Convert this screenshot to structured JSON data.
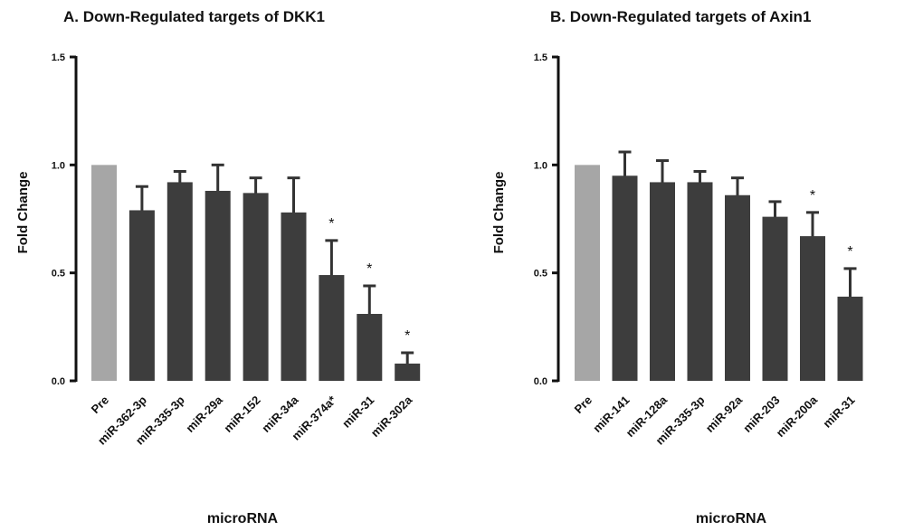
{
  "chart_data": [
    {
      "type": "bar",
      "title": "A.   Down-Regulated targets of DKK1",
      "xlabel": "microRNA",
      "ylabel": "Fold Change",
      "ylim": [
        0,
        1.5
      ],
      "yticks": [
        "0.0",
        "0.5",
        "1.0",
        "1.5"
      ],
      "grid": false,
      "categories": [
        "Pre",
        "miR-362-3p",
        "miR-335-3p",
        "miR-29a",
        "miR-152",
        "miR-34a",
        "miR-374a*",
        "miR-31",
        "miR-302a"
      ],
      "values": [
        1.0,
        0.79,
        0.92,
        0.88,
        0.87,
        0.78,
        0.49,
        0.31,
        0.08
      ],
      "errors": [
        0,
        0.11,
        0.05,
        0.12,
        0.07,
        0.16,
        0.16,
        0.13,
        0.05
      ],
      "significance": [
        "",
        "",
        "",
        "",
        "",
        "",
        "*",
        "*",
        "*"
      ],
      "colors": {
        "control": "#a6a6a6",
        "treatment": "#3d3d3d"
      }
    },
    {
      "type": "bar",
      "title": "B.   Down-Regulated targets of Axin1",
      "xlabel": "microRNA",
      "ylabel": "Fold Change",
      "ylim": [
        0,
        1.5
      ],
      "yticks": [
        "0.0",
        "0.5",
        "1.0",
        "1.5"
      ],
      "grid": false,
      "categories": [
        "Pre",
        "miR-141",
        "miR-128a",
        "miR-335-3p",
        "miR-92a",
        "miR-203",
        "miR-200a",
        "miR-31"
      ],
      "values": [
        1.0,
        0.95,
        0.92,
        0.92,
        0.86,
        0.76,
        0.67,
        0.39
      ],
      "errors": [
        0,
        0.11,
        0.1,
        0.05,
        0.08,
        0.07,
        0.11,
        0.13
      ],
      "significance": [
        "",
        "",
        "",
        "",
        "",
        "",
        "*",
        "*"
      ],
      "colors": {
        "control": "#a6a6a6",
        "treatment": "#3d3d3d"
      }
    }
  ]
}
